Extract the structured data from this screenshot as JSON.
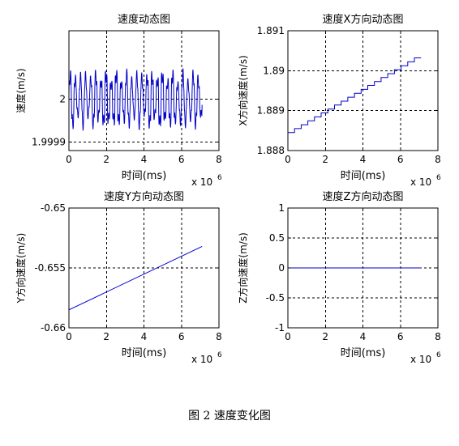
{
  "caption": "图 2  速度变化图",
  "colors": {
    "line": "#0000cc",
    "axis": "#000000",
    "grid": "#000000"
  },
  "chart_data": [
    {
      "type": "line",
      "title": "速度动态图",
      "xlabel": "时间(ms)",
      "ylabel": "速度(m/s)",
      "x_exponent_label": "x 10",
      "x_exponent_power": "6",
      "xlim": [
        0,
        8
      ],
      "ylim": [
        1.99988,
        2.00016
      ],
      "xticks": [
        0,
        2,
        4,
        6,
        8
      ],
      "xtick_labels": [
        "0",
        "2",
        "4",
        "6",
        "8"
      ],
      "yticks": [
        1.9999,
        2
      ],
      "ytick_labels": [
        "1.9999",
        "2"
      ],
      "grid": true,
      "pattern": "oscillating",
      "series": [
        {
          "x_range": [
            0,
            7.1
          ],
          "baseline": 2.0,
          "amplitude": 7e-05,
          "cycles": 26
        }
      ]
    },
    {
      "type": "line",
      "title": "速度X方向动态图",
      "xlabel": "时间(ms)",
      "ylabel": "X方向速度(m/s)",
      "x_exponent_label": "x 10",
      "x_exponent_power": "6",
      "xlim": [
        0,
        8
      ],
      "ylim": [
        1.888,
        1.891
      ],
      "xticks": [
        0,
        2,
        4,
        6,
        8
      ],
      "xtick_labels": [
        "0",
        "2",
        "4",
        "6",
        "8"
      ],
      "yticks": [
        1.888,
        1.889,
        1.89,
        1.891
      ],
      "ytick_labels": [
        "1.888",
        "1.889",
        "1.89",
        "1.891"
      ],
      "grid": true,
      "pattern": "staircase",
      "series": [
        {
          "x": [
            0,
            7.1
          ],
          "y": [
            1.88845,
            1.89032
          ],
          "steps": 20
        }
      ]
    },
    {
      "type": "line",
      "title": "速度Y方向动态图",
      "xlabel": "时间(ms)",
      "ylabel": "Y方向速度(m/s)",
      "x_exponent_label": "x 10",
      "x_exponent_power": "6",
      "xlim": [
        0,
        8
      ],
      "ylim": [
        -0.66,
        -0.65
      ],
      "xticks": [
        0,
        2,
        4,
        6,
        8
      ],
      "xtick_labels": [
        "0",
        "2",
        "4",
        "6",
        "8"
      ],
      "yticks": [
        -0.66,
        -0.655,
        -0.65
      ],
      "ytick_labels": [
        "-0.66",
        "-0.655",
        "-0.65"
      ],
      "grid": true,
      "pattern": "linear",
      "series": [
        {
          "x": [
            0,
            7.1
          ],
          "y": [
            -0.6585,
            -0.6532
          ]
        }
      ]
    },
    {
      "type": "line",
      "title": "速度Z方向动态图",
      "xlabel": "时间(ms)",
      "ylabel": "Z方向速度(m/s)",
      "x_exponent_label": "x 10",
      "x_exponent_power": "6",
      "xlim": [
        0,
        8
      ],
      "ylim": [
        -1,
        1
      ],
      "xticks": [
        0,
        2,
        4,
        6,
        8
      ],
      "xtick_labels": [
        "0",
        "2",
        "4",
        "6",
        "8"
      ],
      "yticks": [
        -1,
        -0.5,
        0,
        0.5,
        1
      ],
      "ytick_labels": [
        "-1",
        "-0.5",
        "0",
        "0.5",
        "1"
      ],
      "grid": true,
      "pattern": "linear",
      "series": [
        {
          "x": [
            0,
            7.1
          ],
          "y": [
            0,
            0
          ]
        }
      ]
    }
  ]
}
